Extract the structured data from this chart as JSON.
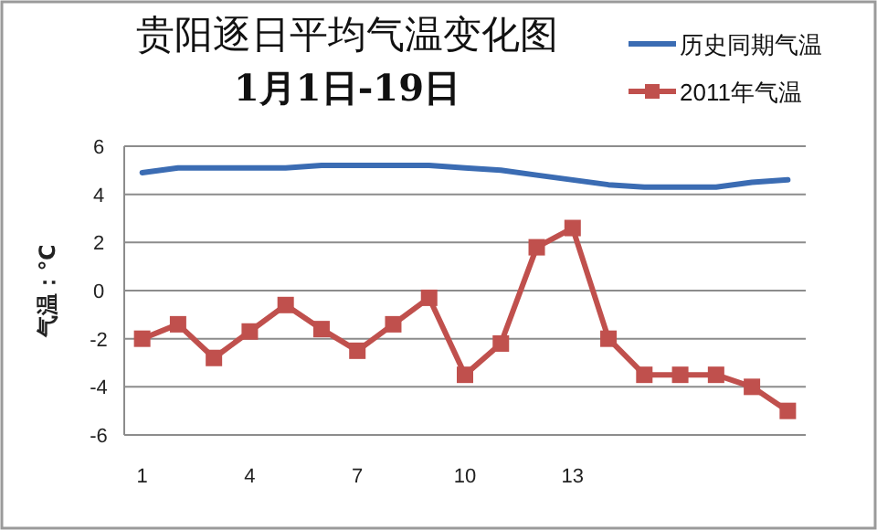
{
  "chart_data": {
    "type": "line",
    "title": "贵阳逐日平均气温变化图",
    "subtitle": "1月1日-19日",
    "ylabel": "气温：℃",
    "categories": [
      "1",
      null,
      null,
      "4",
      null,
      null,
      "7",
      null,
      null,
      "10",
      null,
      null,
      "13",
      null,
      null,
      null,
      null,
      null,
      null
    ],
    "series": [
      {
        "name": "历史同期气温",
        "color": "#3b6cb3",
        "marker": "none",
        "values": [
          4.9,
          5.1,
          5.1,
          5.1,
          5.1,
          5.2,
          5.2,
          5.2,
          5.2,
          5.1,
          5.0,
          4.8,
          4.6,
          4.4,
          4.3,
          4.3,
          4.3,
          4.5,
          4.6
        ]
      },
      {
        "name": "2011年气温",
        "color": "#c0504d",
        "marker": "square",
        "values": [
          -2.0,
          -1.4,
          -2.8,
          -1.7,
          -0.6,
          -1.6,
          -2.5,
          -1.4,
          -0.3,
          -3.5,
          -2.2,
          1.8,
          2.6,
          -2.0,
          -3.5,
          -3.5,
          -3.5,
          -4.0,
          -5.0
        ]
      }
    ],
    "ylim": [
      -6,
      6
    ],
    "yticks": [
      -6,
      -4,
      -2,
      0,
      2,
      4,
      6
    ],
    "grid": "y",
    "legend": "top right"
  }
}
